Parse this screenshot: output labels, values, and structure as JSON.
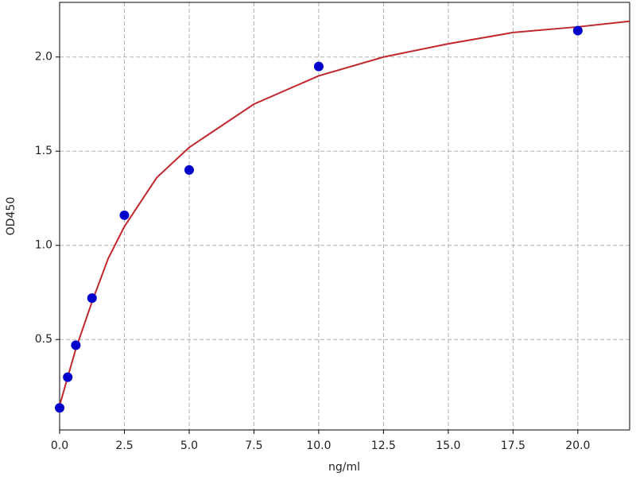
{
  "chart_data": {
    "type": "scatter",
    "xlabel": "ng/ml",
    "ylabel": "OD450",
    "xlim": [
      0,
      22
    ],
    "ylim": [
      0.02,
      2.29
    ],
    "xticks": [
      {
        "value": 0,
        "label": "0.0"
      },
      2.5,
      {
        "value": 5,
        "label": "5.0"
      },
      7.5,
      {
        "value": 10,
        "label": "10.0"
      },
      12.5,
      {
        "value": 15,
        "label": "15.0"
      },
      17.5,
      {
        "value": 20,
        "label": "20.0"
      }
    ],
    "yticks": [
      0.5,
      {
        "value": 1,
        "label": "1.0"
      },
      1.5,
      {
        "value": 2,
        "label": "2.0"
      }
    ],
    "grid": true,
    "series": [
      {
        "type": "line",
        "color": "#c0282d",
        "x": [
          0,
          0.3125,
          0.625,
          1.25,
          1.875,
          2.5,
          3.75,
          5,
          7.5,
          10,
          12.5,
          15,
          17.5,
          20,
          22
        ],
        "values": [
          0.15,
          0.3,
          0.45,
          0.7,
          0.93,
          1.1,
          1.36,
          1.52,
          1.75,
          1.9,
          2.0,
          2.07,
          2.13,
          2.16,
          2.19
        ]
      },
      {
        "type": "scatter",
        "color": "#0000cc",
        "x": [
          0,
          0.3125,
          0.625,
          1.25,
          2.5,
          5,
          10,
          20
        ],
        "values": [
          0.137,
          0.3,
          0.47,
          0.72,
          1.16,
          1.4,
          1.95,
          2.14
        ]
      }
    ]
  }
}
